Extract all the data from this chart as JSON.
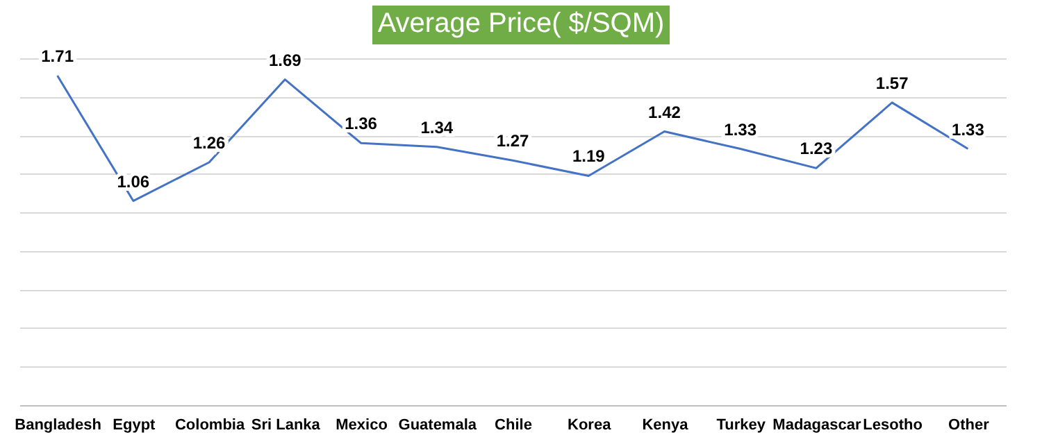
{
  "chart_data": {
    "type": "line",
    "title": "Average Price( $/SQM)",
    "categories": [
      "Bangladesh",
      "Egypt",
      "Colombia",
      "Sri Lanka",
      "Mexico",
      "Guatemala",
      "Chile",
      "Korea",
      "Kenya",
      "Turkey",
      "Madagascar",
      "Lesotho",
      "Other"
    ],
    "series": [
      {
        "color": "#4472c4",
        "values": [
          1.71,
          1.06,
          1.26,
          1.69,
          1.36,
          1.34,
          1.27,
          1.19,
          1.42,
          1.33,
          1.23,
          1.57,
          1.33
        ]
      }
    ],
    "grid": "y",
    "data_labels": true,
    "legend": false,
    "marker": "none",
    "line_style": "solid",
    "tick_labels": "x"
  }
}
